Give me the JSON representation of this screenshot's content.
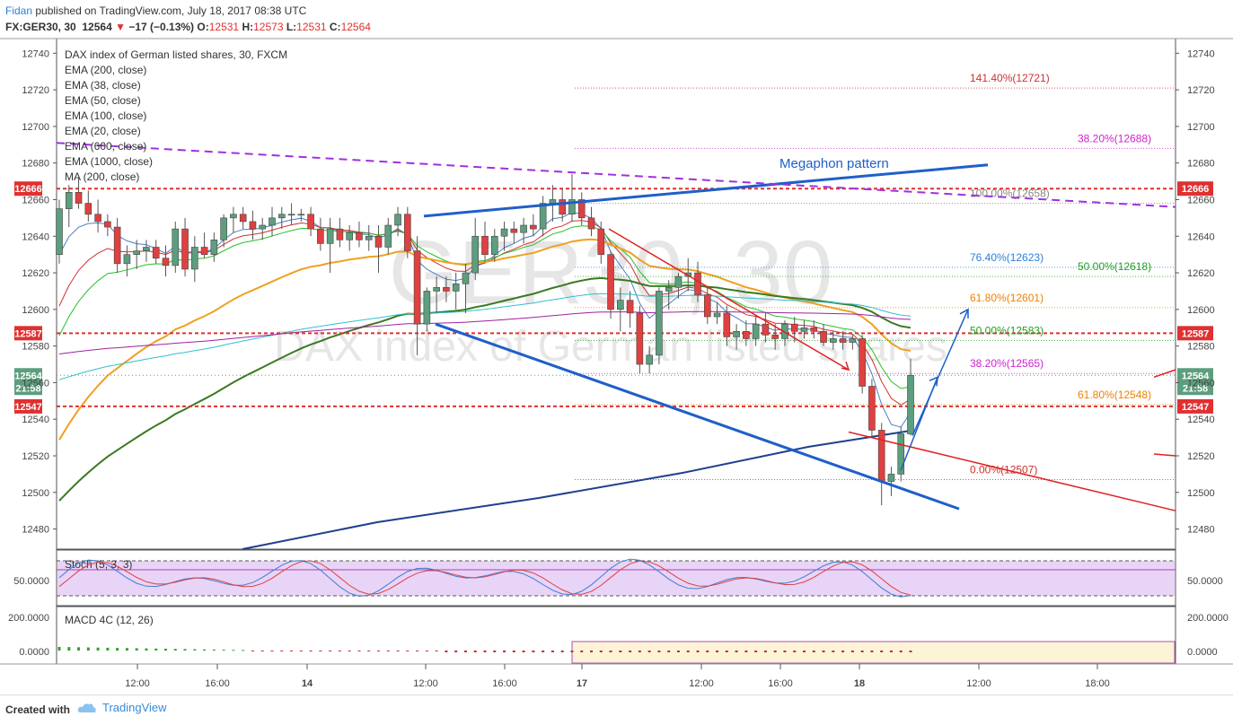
{
  "header": {
    "author": "Fidan",
    "publish_text": "published on TradingView.com, July 18, 2017 08:38 UTC",
    "symbol": "FX:GER30, 30",
    "last": "12564",
    "change": "−17 (−0.13%)",
    "o_label": "O:",
    "o_val": "12531",
    "h_label": "H:",
    "h_val": "12573",
    "l_label": "L:",
    "l_val": "12531",
    "c_label": "C:",
    "c_val": "12564"
  },
  "legend": [
    "DAX index of German listed shares, 30, FXCM",
    "EMA (200, close)",
    "EMA (38, close)",
    "EMA (50, close)",
    "EMA (100, close)",
    "EMA (20, close)",
    "EMA (600, close)",
    "EMA (1000, close)",
    "MA (200, close)"
  ],
  "watermark": {
    "symbol": "GER30, 30",
    "name": "DAX index of German listed shares"
  },
  "colors": {
    "up": "#5c9e7e",
    "down": "#e04040",
    "trendline": "#1f5fc8",
    "fib": "#d02020",
    "pink": "#d020d0"
  },
  "chart_data": {
    "type": "candlestick",
    "y_ticks": [
      12480,
      12500,
      12520,
      12540,
      12560,
      12580,
      12600,
      12620,
      12640,
      12660,
      12680,
      12700,
      12720,
      12740
    ],
    "ylim": [
      12469,
      12748
    ],
    "x_ticks": [
      "12:00",
      "16:00",
      "14",
      "12:00",
      "16:00",
      "17",
      "12:00",
      "16:00",
      "18",
      "12:00",
      "18:00"
    ],
    "price_markers": [
      {
        "value": 12666,
        "label": "12666",
        "color": "#e03030"
      },
      {
        "value": 12587,
        "label": "12587",
        "color": "#e03030"
      },
      {
        "value": 12564,
        "label": "12564",
        "sublabel": "21:58",
        "color": "#5c9e7e"
      },
      {
        "value": 12547,
        "label": "12547",
        "color": "#e03030"
      }
    ],
    "fib_levels": [
      {
        "value": 12721,
        "label": "141.40%(12721)",
        "color": "#d03030"
      },
      {
        "value": 12688,
        "label": "38.20%(12688)",
        "color": "#d020d0"
      },
      {
        "value": 12658,
        "label": "100.00%(12658)",
        "color": "#888888"
      },
      {
        "value": 12623,
        "label": "76.40%(12623)",
        "color": "#2d7fd8"
      },
      {
        "value": 12618,
        "label": "50.00%(12618)",
        "color": "#20a020"
      },
      {
        "value": 12601,
        "label": "61.80%(12601)",
        "color": "#f08000"
      },
      {
        "value": 12583,
        "label": "50.00%(12583)",
        "color": "#20a020"
      },
      {
        "value": 12565,
        "label": "38.20%(12565)",
        "color": "#d020d0"
      },
      {
        "value": 12548,
        "label": "61.80%(12548)",
        "color": "#f08000"
      },
      {
        "value": 12507,
        "label": "0.00%(12507)",
        "color": "#d03030"
      }
    ],
    "annotation": "Megaphon pattern",
    "candles": [
      [
        12630,
        12660,
        12625,
        12655
      ],
      [
        12655,
        12668,
        12645,
        12664
      ],
      [
        12664,
        12672,
        12655,
        12658
      ],
      [
        12658,
        12665,
        12648,
        12652
      ],
      [
        12652,
        12660,
        12642,
        12648
      ],
      [
        12648,
        12652,
        12640,
        12645
      ],
      [
        12645,
        12650,
        12620,
        12625
      ],
      [
        12625,
        12635,
        12618,
        12630
      ],
      [
        12630,
        12638,
        12622,
        12632
      ],
      [
        12632,
        12638,
        12626,
        12634
      ],
      [
        12634,
        12638,
        12625,
        12628
      ],
      [
        12628,
        12635,
        12618,
        12624
      ],
      [
        12624,
        12648,
        12620,
        12644
      ],
      [
        12644,
        12650,
        12618,
        12622
      ],
      [
        12622,
        12640,
        12615,
        12634
      ],
      [
        12634,
        12642,
        12628,
        12630
      ],
      [
        12630,
        12642,
        12626,
        12638
      ],
      [
        12638,
        12652,
        12634,
        12650
      ],
      [
        12650,
        12656,
        12642,
        12652
      ],
      [
        12652,
        12656,
        12644,
        12648
      ],
      [
        12648,
        12654,
        12638,
        12644
      ],
      [
        12644,
        12650,
        12638,
        12646
      ],
      [
        12646,
        12656,
        12640,
        12650
      ],
      [
        12650,
        12656,
        12644,
        12652
      ],
      [
        12652,
        12658,
        12646,
        12652
      ],
      [
        12652,
        12655,
        12648,
        12652
      ],
      [
        12652,
        12656,
        12640,
        12644
      ],
      [
        12644,
        12650,
        12632,
        12636
      ],
      [
        12636,
        12650,
        12620,
        12644
      ],
      [
        12644,
        12650,
        12634,
        12638
      ],
      [
        12638,
        12646,
        12632,
        12642
      ],
      [
        12642,
        12648,
        12634,
        12638
      ],
      [
        12638,
        12646,
        12632,
        12640
      ],
      [
        12640,
        12646,
        12620,
        12634
      ],
      [
        12634,
        12650,
        12630,
        12646
      ],
      [
        12646,
        12656,
        12640,
        12652
      ],
      [
        12652,
        12656,
        12628,
        12632
      ],
      [
        12632,
        12640,
        12575,
        12592
      ],
      [
        12592,
        12612,
        12588,
        12610
      ],
      [
        12610,
        12618,
        12598,
        12612
      ],
      [
        12612,
        12618,
        12604,
        12610
      ],
      [
        12610,
        12620,
        12600,
        12614
      ],
      [
        12614,
        12625,
        12598,
        12620
      ],
      [
        12620,
        12650,
        12616,
        12640
      ],
      [
        12640,
        12648,
        12626,
        12630
      ],
      [
        12630,
        12644,
        12626,
        12640
      ],
      [
        12640,
        12648,
        12632,
        12644
      ],
      [
        12644,
        12648,
        12636,
        12642
      ],
      [
        12642,
        12650,
        12636,
        12646
      ],
      [
        12646,
        12652,
        12640,
        12644
      ],
      [
        12644,
        12662,
        12640,
        12658
      ],
      [
        12658,
        12668,
        12648,
        12660
      ],
      [
        12660,
        12666,
        12648,
        12652
      ],
      [
        12652,
        12674,
        12648,
        12660
      ],
      [
        12660,
        12664,
        12646,
        12650
      ],
      [
        12650,
        12656,
        12640,
        12644
      ],
      [
        12644,
        12648,
        12625,
        12630
      ],
      [
        12630,
        12632,
        12595,
        12600
      ],
      [
        12600,
        12612,
        12588,
        12605
      ],
      [
        12605,
        12610,
        12590,
        12598
      ],
      [
        12598,
        12602,
        12565,
        12570
      ],
      [
        12570,
        12580,
        12565,
        12575
      ],
      [
        12575,
        12612,
        12570,
        12610
      ],
      [
        12610,
        12616,
        12600,
        12612
      ],
      [
        12612,
        12620,
        12606,
        12618
      ],
      [
        12618,
        12628,
        12610,
        12620
      ],
      [
        12620,
        12626,
        12604,
        12608
      ],
      [
        12608,
        12612,
        12592,
        12596
      ],
      [
        12596,
        12604,
        12592,
        12598
      ],
      [
        12598,
        12602,
        12580,
        12585
      ],
      [
        12585,
        12592,
        12578,
        12588
      ],
      [
        12588,
        12594,
        12580,
        12584
      ],
      [
        12584,
        12596,
        12580,
        12592
      ],
      [
        12592,
        12598,
        12582,
        12586
      ],
      [
        12586,
        12592,
        12578,
        12584
      ],
      [
        12584,
        12594,
        12580,
        12592
      ],
      [
        12592,
        12596,
        12582,
        12588
      ],
      [
        12588,
        12594,
        12584,
        12590
      ],
      [
        12590,
        12594,
        12584,
        12588
      ],
      [
        12588,
        12592,
        12580,
        12582
      ],
      [
        12582,
        12588,
        12578,
        12584
      ],
      [
        12584,
        12588,
        12578,
        12582
      ],
      [
        12582,
        12586,
        12578,
        12584
      ],
      [
        12584,
        12586,
        12554,
        12558
      ],
      [
        12558,
        12562,
        12530,
        12534
      ],
      [
        12534,
        12538,
        12493,
        12506
      ],
      [
        12506,
        12514,
        12498,
        12510
      ],
      [
        12510,
        12536,
        12506,
        12532
      ],
      [
        12532,
        12573,
        12531,
        12564
      ]
    ]
  },
  "stoch": {
    "label": "Stoch (5, 3, 3)",
    "ticks": [
      "50.0000"
    ]
  },
  "macd": {
    "label": "MACD 4C (12, 26)",
    "ticks": [
      "200.0000",
      "0.0000"
    ]
  },
  "footer": {
    "created_with": "Created with",
    "brand": "TradingView"
  }
}
